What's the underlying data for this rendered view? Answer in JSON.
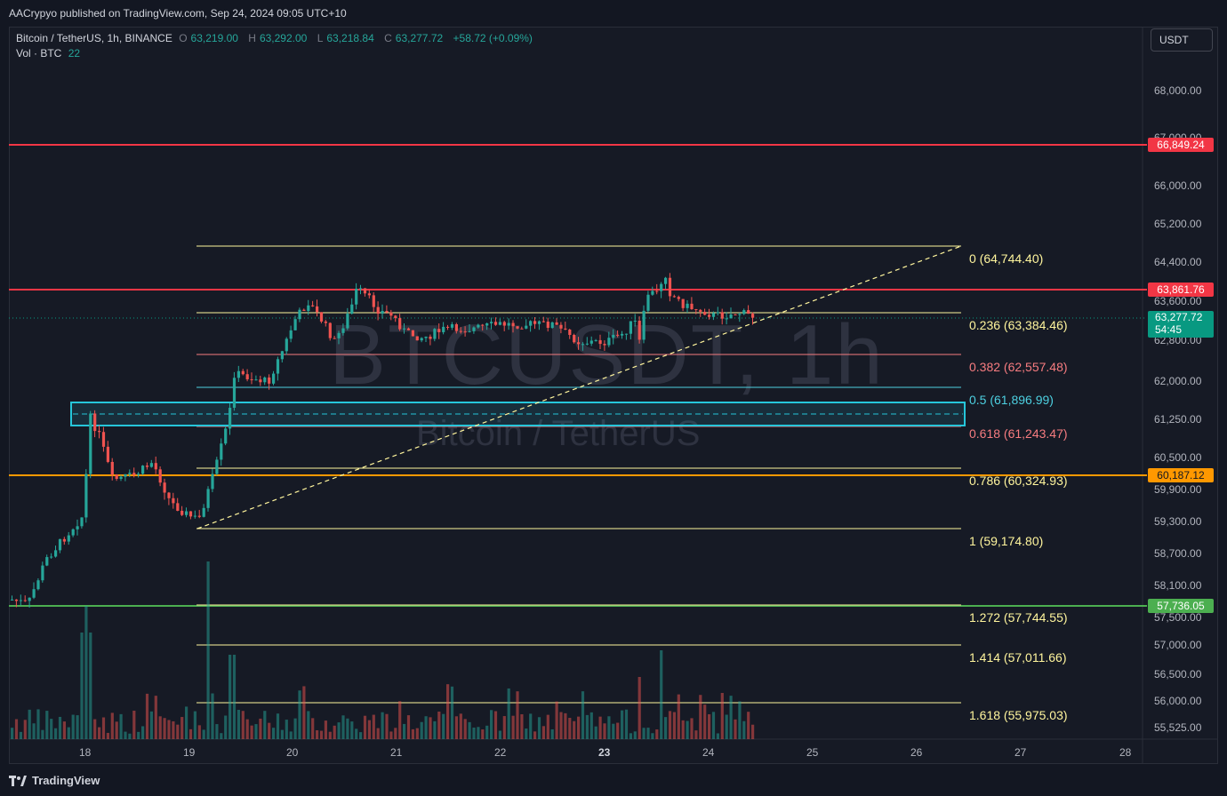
{
  "publisher": "AACrypyo published on TradingView.com, Sep 24, 2024 09:05 UTC+10",
  "symbol": {
    "name": "Bitcoin / TetherUS, 1h, BINANCE",
    "open_label": "O",
    "open": "63,219.00",
    "high_label": "H",
    "high": "63,292.00",
    "low_label": "L",
    "low": "63,218.84",
    "close_label": "C",
    "close": "63,277.72",
    "change": "+58.72 (+0.09%)"
  },
  "volume": {
    "label": "Vol · BTC",
    "value": "22"
  },
  "currency_button": "USDT",
  "watermark": {
    "ticker": "BTCUSDT, 1h",
    "name": "Bitcoin / TetherUS"
  },
  "price_axis": [
    "68,000.00",
    "67,000.00",
    "66,000.00",
    "65,200.00",
    "64,400.00",
    "63,600.00",
    "62,800.00",
    "62,000.00",
    "61,250.00",
    "60,500.00",
    "59,900.00",
    "59,300.00",
    "58,700.00",
    "58,100.00",
    "57,500.00",
    "57,000.00",
    "56,500.00",
    "56,000.00",
    "55,525.00"
  ],
  "time_axis": [
    "18",
    "19",
    "20",
    "21",
    "22",
    "23",
    "24",
    "25",
    "26",
    "27",
    "28"
  ],
  "price_tags": {
    "r1": {
      "value": "66,849.24",
      "color": "#f23645"
    },
    "r2": {
      "value": "63,861.76",
      "color": "#f23645"
    },
    "cur": {
      "value": "63,277.72",
      "countdown": "54:45",
      "color": "#089981"
    },
    "s1": {
      "value": "60,187.12",
      "color": "#ff9800"
    },
    "s2": {
      "value": "57,736.05",
      "color": "#4caf50"
    }
  },
  "fib_levels": [
    {
      "label": "0 (64,744.40)",
      "color": "#fff59d"
    },
    {
      "label": "0.236 (63,384.46)",
      "color": "#fff59d"
    },
    {
      "label": "0.382 (62,557.48)",
      "color": "#f77c80"
    },
    {
      "label": "0.5 (61,896.99)",
      "color": "#4dd0e1"
    },
    {
      "label": "0.618 (61,243.47)",
      "color": "#f77c80"
    },
    {
      "label": "0.786 (60,324.93)",
      "color": "#fff59d"
    },
    {
      "label": "1 (59,174.80)",
      "color": "#fff59d"
    },
    {
      "label": "1.272 (57,744.55)",
      "color": "#fff59d"
    },
    {
      "label": "1.414 (57,011.66)",
      "color": "#fff59d"
    },
    {
      "label": "1.618 (55,975.03)",
      "color": "#fff59d"
    }
  ],
  "brand": "TradingView",
  "colors": {
    "up": "#26a69a",
    "down": "#ef5350"
  }
}
